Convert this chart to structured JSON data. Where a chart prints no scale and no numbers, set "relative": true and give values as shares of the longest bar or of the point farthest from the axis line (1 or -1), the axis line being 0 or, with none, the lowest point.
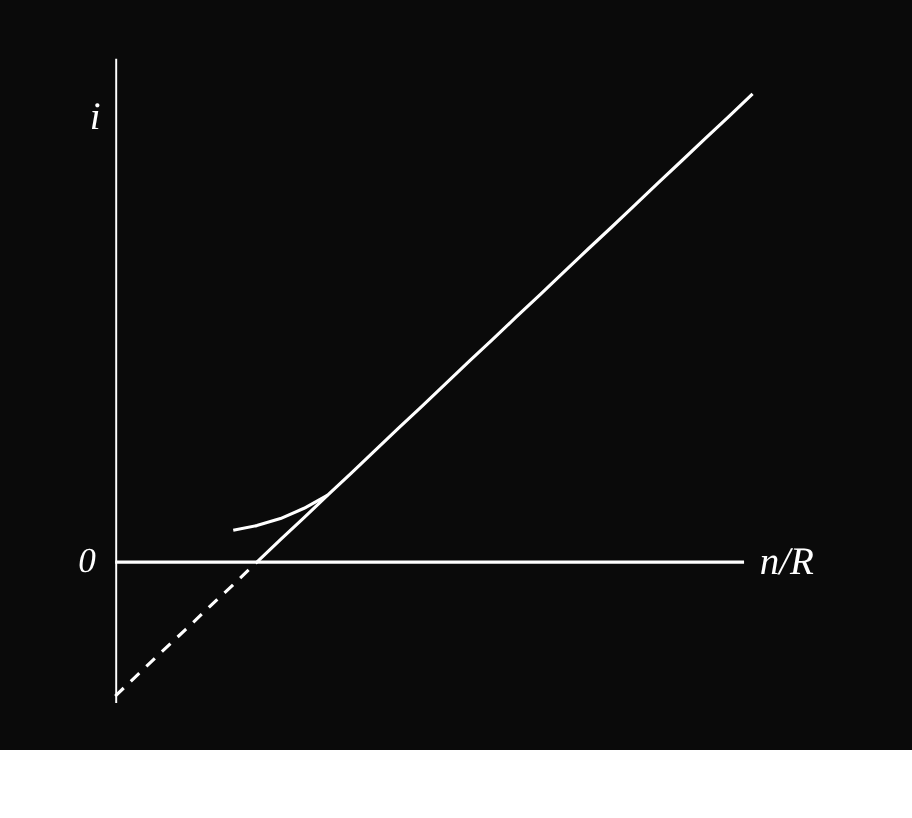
{
  "chart_data": {
    "type": "line",
    "relative": true,
    "ylabel": "i",
    "xlabel": "n/R",
    "annotations": [
      "0"
    ],
    "categories": [
      null,
      null,
      null,
      null,
      null,
      null,
      null,
      null,
      null,
      null,
      null,
      null,
      null,
      null,
      null,
      null,
      null,
      null,
      null,
      null,
      null,
      null,
      null,
      null,
      null,
      null,
      null,
      null
    ],
    "series": [
      {
        "color": "#ffffff",
        "line_style": "solid",
        "values": [
          null,
          null,
          null,
          null,
          null,
          null,
          0,
          0.048,
          0.095,
          0.143,
          0.19,
          0.238,
          0.286,
          0.333,
          0.381,
          0.429,
          0.476,
          0.524,
          0.571,
          0.619,
          0.667,
          0.714,
          0.762,
          0.81,
          0.857,
          0.905,
          0.952,
          1
        ]
      },
      {
        "color": "#ffffff",
        "line_style": "dashed",
        "values": [
          -0.286,
          -0.238,
          -0.19,
          -0.143,
          -0.095,
          -0.048,
          0,
          null,
          null,
          null,
          null,
          null,
          null,
          null,
          null,
          null,
          null,
          null,
          null,
          null,
          null,
          null,
          null,
          null,
          null,
          null,
          null,
          null
        ]
      },
      {
        "color": "#ffffff",
        "line_style": "solid",
        "values": [
          null,
          null,
          null,
          null,
          null,
          0.068,
          0.078,
          0.093,
          0.115,
          0.143,
          null,
          null,
          null,
          null,
          null,
          null,
          null,
          null,
          null,
          null,
          null,
          null,
          null,
          null,
          null,
          null,
          null,
          null
        ]
      }
    ],
    "marker": "none"
  }
}
